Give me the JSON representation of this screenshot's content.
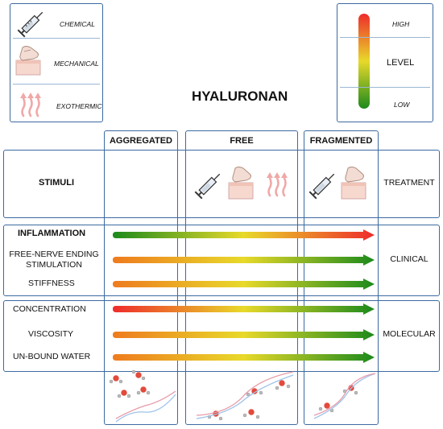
{
  "legend_stimuli": {
    "chemical": "CHEMICAL",
    "mechanical": "MECHANICAL",
    "exothermic": "EXOTHERMIC"
  },
  "legend_level": {
    "high": "HIGH",
    "level": "LEVEL",
    "low": "LOW",
    "colors": {
      "high": "#ee2b2b",
      "mid": "#e8d92a",
      "low": "#1c8a1c"
    }
  },
  "title": "HYALURONAN",
  "columns": [
    "AGGREGATED",
    "FREE",
    "FRAGMENTED"
  ],
  "rows": {
    "stimuli": "STIMULI",
    "clinical": [
      "INFLAMMATION",
      "FREE-NERVE ENDING\nSTIMULATION",
      "STIFFNESS"
    ],
    "molecular": [
      "CONCENTRATION",
      "VISCOSITY",
      "UN-BOUND WATER"
    ]
  },
  "groups": {
    "treatment": "TREATMENT",
    "clinical": "CLINICAL",
    "molecular": "MOLECULAR"
  },
  "gradients": {
    "inflammation": [
      "#1c8a1c",
      "#e8d92a",
      "#ee2b2b"
    ],
    "nerve": [
      "#ee7b1e",
      "#e8d92a",
      "#1c8a1c"
    ],
    "stiffness": [
      "#ee7b1e",
      "#e8d92a",
      "#1c8a1c"
    ],
    "concentration": [
      "#ee2b2b",
      "#e8d92a",
      "#1c8a1c"
    ],
    "viscosity": [
      "#ee7b1e",
      "#e8d92a",
      "#1c8a1c"
    ],
    "unbound_water": [
      "#ee7b1e",
      "#e8d92a",
      "#1c8a1c"
    ]
  }
}
